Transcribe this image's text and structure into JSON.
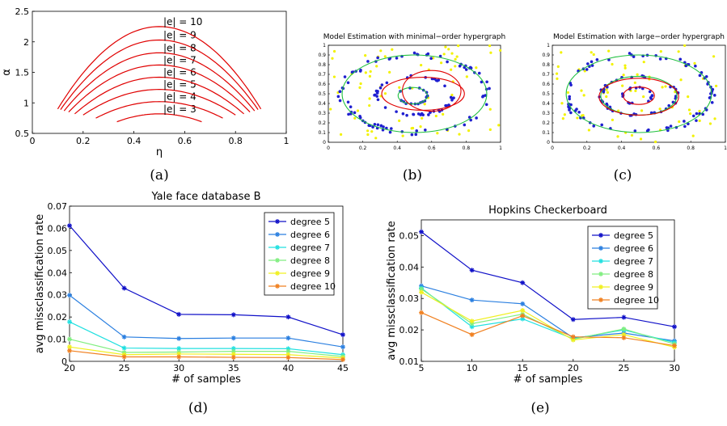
{
  "captions": [
    "(a)",
    "(b)",
    "(c)",
    "(d)",
    "(e)"
  ],
  "chart_data": [
    {
      "id": "a",
      "type": "line",
      "xlabel": "η",
      "ylabel": "α",
      "xlim": [
        0,
        1
      ],
      "ylim": [
        0.5,
        2.5
      ],
      "xticks": [
        "0",
        "0.2",
        "0.4",
        "0.6",
        "0.8",
        "1"
      ],
      "yticks": [
        "0.5",
        "1",
        "1.5",
        "2",
        "2.5"
      ],
      "grid": false,
      "curve_color": "#e00000",
      "series": [
        {
          "name": "|e| = 3",
          "degree": 3,
          "values": [
            [
              0.333,
              0.69
            ],
            [
              0.5,
              0.82
            ],
            [
              0.667,
              0.69
            ]
          ]
        },
        {
          "name": "|e| = 4",
          "degree": 4,
          "values": [
            [
              0.25,
              0.75
            ],
            [
              0.5,
              1.02
            ],
            [
              0.75,
              0.75
            ]
          ]
        },
        {
          "name": "|e| = 5",
          "degree": 5,
          "values": [
            [
              0.2,
              0.8
            ],
            [
              0.5,
              1.22
            ],
            [
              0.8,
              0.8
            ]
          ]
        },
        {
          "name": "|e| = 6",
          "degree": 6,
          "values": [
            [
              0.167,
              0.82
            ],
            [
              0.5,
              1.42
            ],
            [
              0.833,
              0.82
            ]
          ]
        },
        {
          "name": "|e| = 7",
          "degree": 7,
          "values": [
            [
              0.143,
              0.85
            ],
            [
              0.5,
              1.62
            ],
            [
              0.857,
              0.85
            ]
          ]
        },
        {
          "name": "|e| = 8",
          "degree": 8,
          "values": [
            [
              0.125,
              0.87
            ],
            [
              0.5,
              1.82
            ],
            [
              0.875,
              0.87
            ]
          ]
        },
        {
          "name": "|e| = 9",
          "degree": 9,
          "values": [
            [
              0.111,
              0.89
            ],
            [
              0.5,
              2.03
            ],
            [
              0.889,
              0.89
            ]
          ]
        },
        {
          "name": "|e| = 10",
          "degree": 10,
          "values": [
            [
              0.1,
              0.9
            ],
            [
              0.5,
              2.25
            ],
            [
              0.9,
              0.9
            ]
          ]
        }
      ]
    },
    {
      "id": "b",
      "type": "scatter",
      "title": "Model Estimation with minimal−order hypergraph",
      "xlim": [
        0,
        1
      ],
      "ylim": [
        0,
        1
      ],
      "xticks": [
        "0",
        "0.2",
        "0.4",
        "0.6",
        "0.8",
        "1"
      ],
      "yticks": [
        "0",
        "0.1",
        "0.2",
        "0.3",
        "0.4",
        "0.5",
        "0.6",
        "0.7",
        "0.8",
        "0.9",
        "1"
      ],
      "colors": {
        "inlier": "#1f1fd0",
        "outlier": "#f2f200",
        "fit_good": "#20c040",
        "fit_bad": "#e00000"
      },
      "fitted_circles": [
        {
          "cx": 0.5,
          "cy": 0.5,
          "rx": 0.42,
          "ry": 0.4,
          "color": "#20c040"
        },
        {
          "cx": 0.49,
          "cy": 0.48,
          "rx": 0.085,
          "ry": 0.085,
          "color": "#20c040"
        },
        {
          "cx": 0.6,
          "cy": 0.53,
          "rx": 0.17,
          "ry": 0.21,
          "color": "#e00000"
        },
        {
          "cx": 0.55,
          "cy": 0.5,
          "rx": 0.24,
          "ry": 0.17,
          "color": "#e00000"
        }
      ]
    },
    {
      "id": "c",
      "type": "scatter",
      "title": "Model Estimation with large−order hypergraph",
      "xlim": [
        0,
        1
      ],
      "ylim": [
        0,
        1
      ],
      "xticks": [
        "0",
        "0.2",
        "0.4",
        "0.6",
        "0.8",
        "1"
      ],
      "yticks": [
        "0",
        "0.1",
        "0.2",
        "0.3",
        "0.4",
        "0.5",
        "0.6",
        "0.7",
        "0.8",
        "0.9",
        "1"
      ],
      "colors": {
        "inlier": "#1f1fd0",
        "outlier": "#f2f200",
        "fit_good": "#20c040",
        "fit_bad": "#e00000"
      },
      "fitted_circles": [
        {
          "cx": 0.5,
          "cy": 0.5,
          "rx": 0.42,
          "ry": 0.4,
          "color": "#20c040"
        },
        {
          "cx": 0.5,
          "cy": 0.48,
          "rx": 0.22,
          "ry": 0.2,
          "color": "#20c040"
        },
        {
          "cx": 0.5,
          "cy": 0.47,
          "rx": 0.23,
          "ry": 0.19,
          "color": "#e00000"
        },
        {
          "cx": 0.5,
          "cy": 0.48,
          "rx": 0.09,
          "ry": 0.09,
          "color": "#e00000"
        }
      ]
    },
    {
      "id": "d",
      "type": "line",
      "title": "Yale face database B",
      "xlabel": "# of samples",
      "ylabel": "avg missclassification rate",
      "xlim": [
        20,
        45
      ],
      "ylim": [
        0,
        0.07
      ],
      "x": [
        20,
        25,
        30,
        35,
        40,
        45
      ],
      "xticks": [
        "20",
        "25",
        "30",
        "35",
        "40",
        "45"
      ],
      "yticks": [
        "0",
        "0.01",
        "0.02",
        "0.03",
        "0.04",
        "0.05",
        "0.06",
        "0.07"
      ],
      "legend_position": "top-right",
      "series": [
        {
          "name": "degree 5",
          "color": "#1010c8",
          "values": [
            0.0612,
            0.033,
            0.0212,
            0.021,
            0.02,
            0.012
          ]
        },
        {
          "name": "degree 6",
          "color": "#2a7fe0",
          "values": [
            0.0298,
            0.011,
            0.0103,
            0.0105,
            0.0105,
            0.0065
          ]
        },
        {
          "name": "degree 7",
          "color": "#20e0e0",
          "values": [
            0.0178,
            0.006,
            0.0058,
            0.0058,
            0.0057,
            0.003
          ]
        },
        {
          "name": "degree 8",
          "color": "#80ee80",
          "values": [
            0.01,
            0.004,
            0.0042,
            0.0045,
            0.0045,
            0.0022
          ]
        },
        {
          "name": "degree 9",
          "color": "#f0f020",
          "values": [
            0.0065,
            0.003,
            0.0033,
            0.0032,
            0.003,
            0.0015
          ]
        },
        {
          "name": "degree 10",
          "color": "#f08020",
          "values": [
            0.0048,
            0.002,
            0.002,
            0.0018,
            0.0017,
            0.0008
          ]
        }
      ]
    },
    {
      "id": "e",
      "type": "line",
      "title": "Hopkins Checkerboard",
      "xlabel": "# of samples",
      "ylabel": "avg missclassification rate",
      "xlim": [
        5,
        30
      ],
      "ylim": [
        0.01,
        0.055
      ],
      "x": [
        5,
        10,
        15,
        20,
        25,
        30
      ],
      "xticks": [
        "5",
        "10",
        "15",
        "20",
        "25",
        "30"
      ],
      "yticks": [
        "0.01",
        "0.02",
        "0.03",
        "0.04",
        "0.05"
      ],
      "legend_position": "top-right",
      "series": [
        {
          "name": "degree 5",
          "color": "#1010c8",
          "values": [
            0.0512,
            0.039,
            0.035,
            0.0233,
            0.024,
            0.021
          ]
        },
        {
          "name": "degree 6",
          "color": "#2a7fe0",
          "values": [
            0.034,
            0.0295,
            0.0283,
            0.0175,
            0.019,
            0.0165
          ]
        },
        {
          "name": "degree 7",
          "color": "#20e0e0",
          "values": [
            0.0333,
            0.021,
            0.0235,
            0.0172,
            0.02,
            0.016
          ]
        },
        {
          "name": "degree 8",
          "color": "#80ee80",
          "values": [
            0.033,
            0.022,
            0.025,
            0.017,
            0.0203,
            0.0155
          ]
        },
        {
          "name": "degree 9",
          "color": "#f0f020",
          "values": [
            0.032,
            0.0228,
            0.0262,
            0.0168,
            0.0185,
            0.0145
          ]
        },
        {
          "name": "degree 10",
          "color": "#f08020",
          "values": [
            0.0255,
            0.0185,
            0.0245,
            0.0178,
            0.0175,
            0.015
          ]
        }
      ]
    }
  ]
}
